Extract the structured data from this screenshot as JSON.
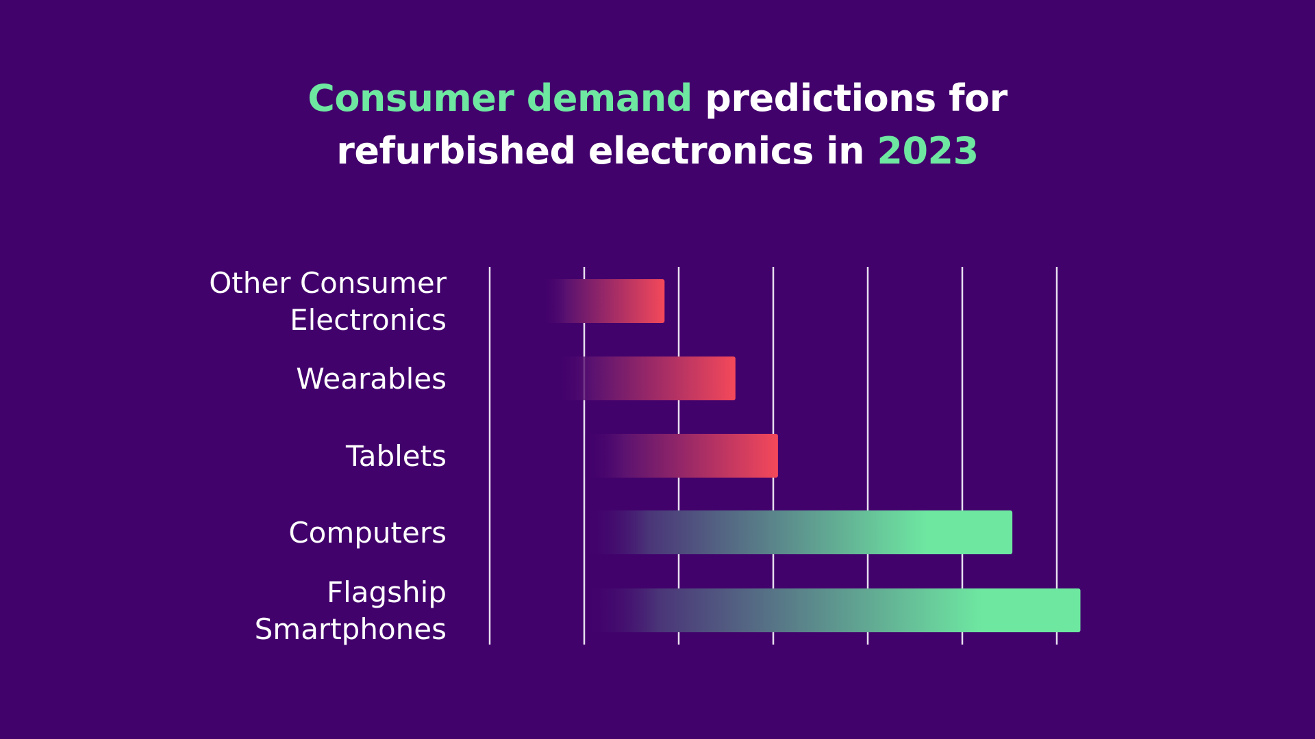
{
  "title": {
    "part1_highlight": "Consumer demand",
    "part2": " predictions for",
    "part3": "refurbished electronics in ",
    "part4_highlight": "2023"
  },
  "colors": {
    "background": "#42026c",
    "highlight": "#6ee7a1",
    "text": "#ffffff",
    "bar_red": "#f4495a",
    "bar_green": "#6ee7a1",
    "gridline": "#e8e0f0"
  },
  "chart_data": {
    "type": "bar",
    "orientation": "horizontal",
    "categories": [
      [
        "Other Consumer",
        "Electronics"
      ],
      [
        "Wearables"
      ],
      [
        "Tablets"
      ],
      [
        "Computers"
      ],
      [
        "Flagship",
        "Smartphones"
      ]
    ],
    "bars": [
      {
        "start": -0.45,
        "end": 0.85,
        "color": "red"
      },
      {
        "start": -0.3,
        "end": 1.6,
        "color": "red"
      },
      {
        "start": 0.0,
        "end": 2.05,
        "color": "red"
      },
      {
        "start": 0.0,
        "end": 4.53,
        "color": "green"
      },
      {
        "start": 0.0,
        "end": 5.25,
        "color": "green"
      }
    ],
    "gridlines": [
      0,
      1,
      2,
      3,
      4,
      5
    ],
    "xlim": [
      -1,
      5.5
    ],
    "grid": true,
    "legend": "none"
  }
}
